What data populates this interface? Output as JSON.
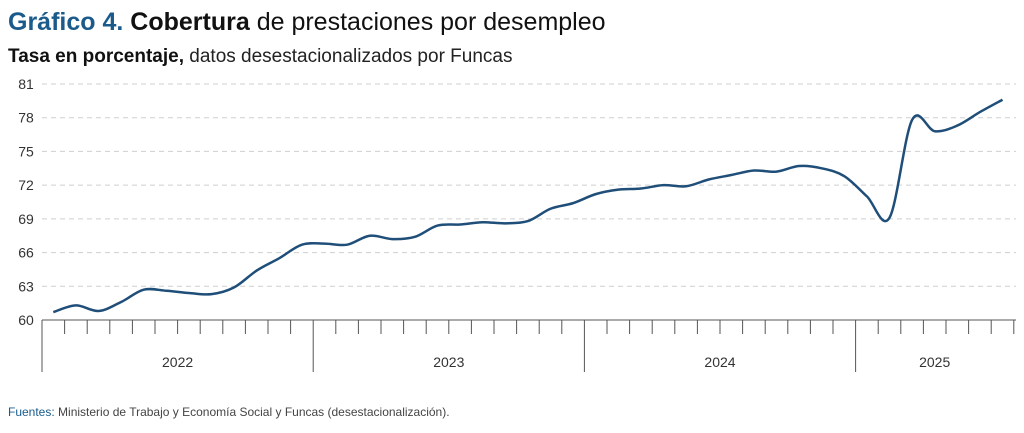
{
  "chart_data": {
    "type": "line",
    "title_prefix": "Gráfico 4.",
    "title_bold": "Cobertura",
    "title_rest": "de prestaciones por desempleo",
    "subtitle_bold": "Tasa en porcentaje,",
    "subtitle_rest": "datos desestacionalizados por Funcas",
    "source_label": "Fuentes:",
    "source_text": "Ministerio de Trabajo y Economía Social y Funcas (desestacionalización).",
    "year_labels": [
      "2022",
      "2023",
      "2024",
      "2025"
    ],
    "categories": [
      null,
      null,
      null,
      null,
      null,
      null,
      null,
      null,
      null,
      null,
      null,
      null,
      null,
      null,
      null,
      null,
      null,
      null,
      null,
      null,
      null,
      null,
      null,
      null,
      null,
      null,
      null,
      null,
      null,
      null,
      null,
      null,
      null,
      null,
      null,
      null,
      null,
      null,
      null,
      null,
      null,
      null,
      null
    ],
    "series": [
      {
        "name": "Cobertura",
        "color": "#1f4e79",
        "values": [
          60.7,
          61.3,
          60.8,
          61.6,
          62.7,
          62.6,
          62.4,
          62.3,
          62.9,
          64.4,
          65.5,
          66.7,
          66.8,
          66.7,
          67.5,
          67.2,
          67.4,
          68.4,
          68.5,
          68.7,
          68.6,
          68.8,
          69.9,
          70.4,
          71.2,
          71.6,
          71.7,
          72.0,
          71.9,
          72.5,
          72.9,
          73.3,
          73.2,
          73.7,
          73.5,
          72.8,
          71.0,
          69.1,
          77.8,
          76.8,
          77.3,
          78.5,
          79.6
        ]
      }
    ],
    "ylim": [
      60,
      81
    ],
    "yticks": [
      60,
      63,
      66,
      69,
      72,
      75,
      78,
      81
    ],
    "grid": true
  }
}
